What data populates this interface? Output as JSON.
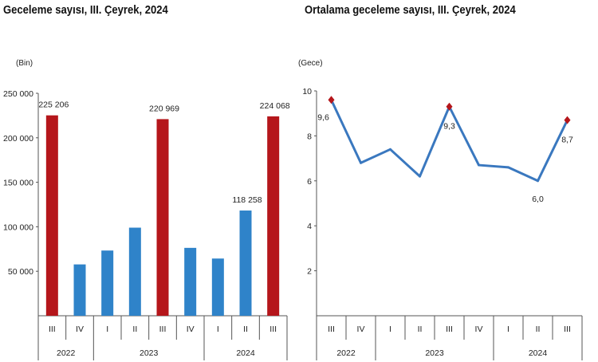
{
  "chart_data": [
    {
      "type": "bar",
      "title": "Geceleme sayısı, III. Çeyrek, 2024",
      "ylabel": "(Bin)",
      "ylim": [
        0,
        250000
      ],
      "yticks": [
        "50 000",
        "100 000",
        "150 000",
        "200 000",
        "250 000"
      ],
      "ytick_values": [
        50000,
        100000,
        150000,
        200000,
        250000
      ],
      "categories": [
        "III",
        "IV",
        "I",
        "II",
        "III",
        "IV",
        "I",
        "II",
        "III"
      ],
      "years": [
        {
          "label": "2022",
          "span": 2
        },
        {
          "label": "2023",
          "span": 4
        },
        {
          "label": "2024",
          "span": 3
        }
      ],
      "values": [
        225206,
        57700,
        73300,
        99000,
        220969,
        76300,
        64300,
        118258,
        224068
      ],
      "data_labels": [
        "225 206",
        "",
        "",
        "",
        "220 969",
        "",
        "",
        "118 258",
        "224 068"
      ],
      "highlight": [
        true,
        false,
        false,
        false,
        true,
        false,
        false,
        false,
        true
      ],
      "colors": {
        "highlight": "#b5161b",
        "normal": "#2f83c9"
      }
    },
    {
      "type": "line",
      "title": "Ortalama geceleme sayısı, III. Çeyrek, 2024",
      "ylabel": "(Gece)",
      "ylim": [
        0,
        10
      ],
      "yticks": [
        "2",
        "4",
        "6",
        "8",
        "10"
      ],
      "ytick_values": [
        2,
        4,
        6,
        8,
        10
      ],
      "categories": [
        "III",
        "IV",
        "I",
        "II",
        "III",
        "IV",
        "I",
        "II",
        "III"
      ],
      "years": [
        {
          "label": "2022",
          "span": 2
        },
        {
          "label": "2023",
          "span": 4
        },
        {
          "label": "2024",
          "span": 3
        }
      ],
      "values": [
        9.6,
        6.8,
        7.4,
        6.2,
        9.3,
        6.7,
        6.6,
        6.0,
        8.7
      ],
      "data_labels": [
        "9,6",
        "",
        "",
        "",
        "9,3",
        "",
        "",
        "6,0",
        "8,7"
      ],
      "highlight": [
        true,
        false,
        false,
        false,
        true,
        false,
        false,
        false,
        true
      ],
      "colors": {
        "line": "#3a78bf",
        "marker": "#b5161b"
      }
    }
  ]
}
